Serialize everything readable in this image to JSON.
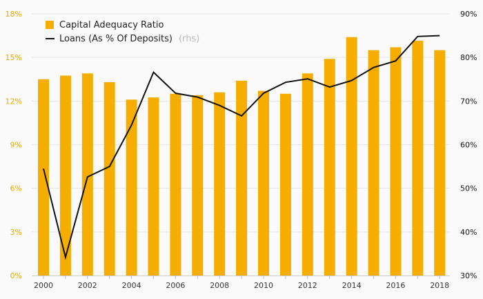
{
  "chart_data": {
    "type": "bar+line",
    "x": [
      2000,
      2001,
      2002,
      2003,
      2004,
      2005,
      2006,
      2007,
      2008,
      2009,
      2010,
      2011,
      2012,
      2013,
      2014,
      2015,
      2016,
      2017,
      2018
    ],
    "x_tick_labels": [
      "2000",
      "2002",
      "2004",
      "2006",
      "2008",
      "2010",
      "2012",
      "2014",
      "2016",
      "2018"
    ],
    "y_left": {
      "ylim": [
        0,
        18
      ],
      "ticks": [
        0,
        3,
        6,
        9,
        12,
        15,
        18
      ],
      "tick_labels": [
        "0%",
        "3%",
        "6%",
        "9%",
        "12%",
        "15%",
        "18%"
      ]
    },
    "y_right": {
      "ylim": [
        30,
        90
      ],
      "ticks": [
        30,
        40,
        50,
        60,
        70,
        80,
        90
      ],
      "tick_labels": [
        "30%",
        "40%",
        "50%",
        "60%",
        "70%",
        "80%",
        "90%"
      ]
    },
    "series": [
      {
        "name": "Capital Adequacy Ratio",
        "type": "bar",
        "axis": "left",
        "color": "#f5ad00",
        "values": [
          13.5,
          13.75,
          13.9,
          13.3,
          12.1,
          12.25,
          12.5,
          12.4,
          12.6,
          13.4,
          12.7,
          12.5,
          13.9,
          14.9,
          16.4,
          15.5,
          15.7,
          16.15,
          15.5
        ]
      },
      {
        "name": "Loans (As % Of Deposits)",
        "name_suffix": "(rhs)",
        "type": "line",
        "axis": "right",
        "color": "#111111",
        "values": [
          54.5,
          34.2,
          52.6,
          55.0,
          64.5,
          76.6,
          71.8,
          70.9,
          69.0,
          66.6,
          71.8,
          74.3,
          75.1,
          73.2,
          74.7,
          77.7,
          79.2,
          84.8,
          85.0
        ]
      }
    ],
    "grid": true,
    "legend_position": "top-left"
  }
}
